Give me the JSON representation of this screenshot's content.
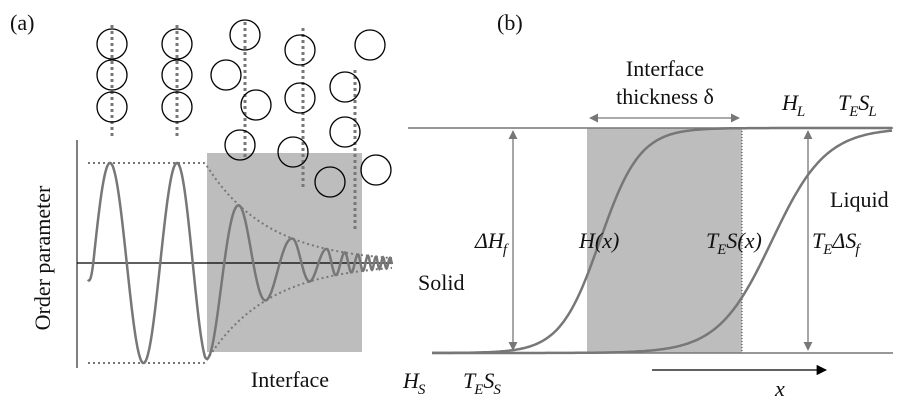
{
  "panel_a": {
    "label": "(a)",
    "y_axis_label": "Order parameter",
    "region_label": "Interface"
  },
  "panel_b": {
    "label": "(b)",
    "interface_label": [
      "Interface",
      "thickness δ"
    ],
    "h_l": [
      "H",
      "L"
    ],
    "te_s_l": [
      "T",
      "E",
      "S",
      "L"
    ],
    "delta_h_f": [
      "ΔH",
      "f"
    ],
    "h_x": [
      "H(x)"
    ],
    "te_s_x": [
      "T",
      "E",
      "S(x)"
    ],
    "te_delta_s_f": [
      "T",
      "E",
      "ΔS",
      "f"
    ],
    "liquid": "Liquid",
    "solid": "Solid",
    "h_s": [
      "H",
      "S"
    ],
    "te_s_s": [
      "T",
      "E",
      "S",
      "S"
    ],
    "x_axis": "x"
  }
}
